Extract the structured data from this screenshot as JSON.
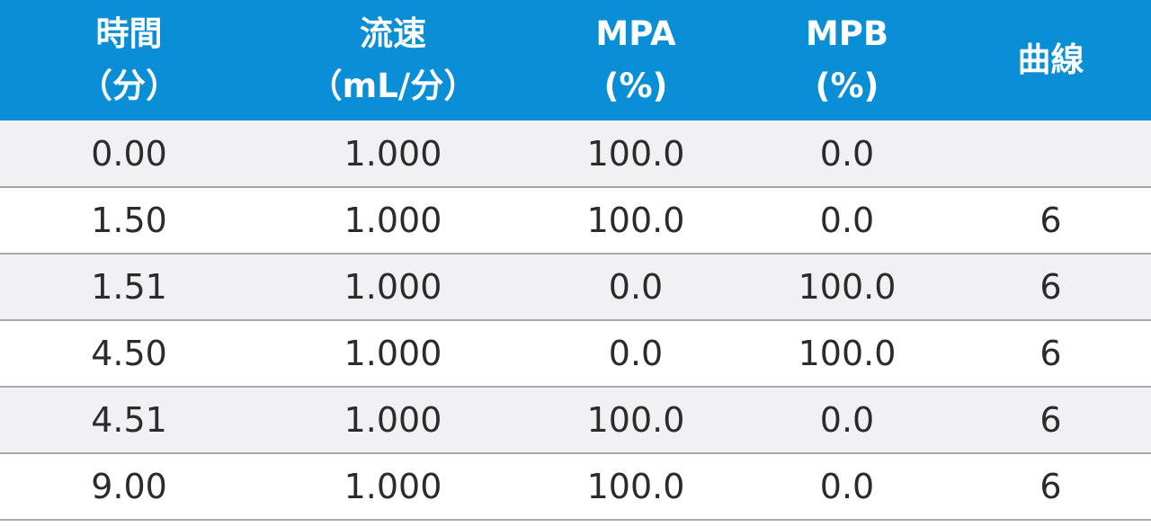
{
  "table": {
    "header_bg": "#0a8fd6",
    "header_text_color": "#ffffff",
    "row_shade": "#f1f1f3",
    "row_divider": "#a7a9ad",
    "headers": [
      {
        "line1": "時間",
        "line2": "（分）"
      },
      {
        "line1": "流速",
        "line2": "（mL/分）"
      },
      {
        "line1": "MPA",
        "line2": "(%)"
      },
      {
        "line1": "MPB",
        "line2": "(%)"
      },
      {
        "line1": "曲線",
        "line2": ""
      }
    ],
    "rows": [
      [
        "0.00",
        "1.000",
        "100.0",
        "0.0",
        ""
      ],
      [
        "1.50",
        "1.000",
        "100.0",
        "0.0",
        "6"
      ],
      [
        "1.51",
        "1.000",
        "0.0",
        "100.0",
        "6"
      ],
      [
        "4.50",
        "1.000",
        "0.0",
        "100.0",
        "6"
      ],
      [
        "4.51",
        "1.000",
        "100.0",
        "0.0",
        "6"
      ],
      [
        "9.00",
        "1.000",
        "100.0",
        "0.0",
        "6"
      ]
    ]
  }
}
